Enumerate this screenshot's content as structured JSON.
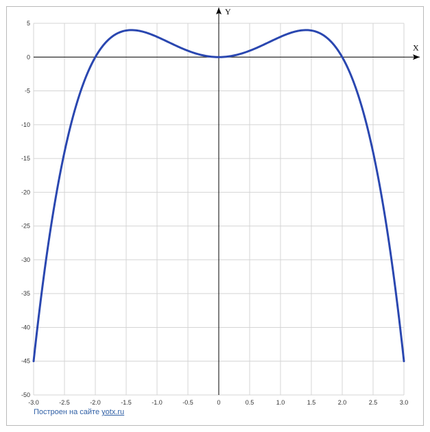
{
  "chart_data": {
    "type": "line",
    "function": "y = 4x^2 - x^4",
    "xlabel": "X",
    "ylabel": "Y",
    "xlim": [
      -3.0,
      3.0
    ],
    "ylim": [
      -50,
      5
    ],
    "x_ticks": [
      "-3.0",
      "-2.5",
      "-2.0",
      "-1.5",
      "-1.0",
      "-0.5",
      "0",
      "0.5",
      "1.0",
      "1.5",
      "2.0",
      "2.5",
      "3.0"
    ],
    "y_ticks": [
      "5",
      "0",
      "-5",
      "-10",
      "-15",
      "-20",
      "-25",
      "-30",
      "-35",
      "-40",
      "-45",
      "-50"
    ],
    "grid": true,
    "series": [
      {
        "color": "#2a47b0",
        "x": [
          -3.0,
          -2.75,
          -2.5,
          -2.25,
          -2.0,
          -1.75,
          -1.5,
          -1.414,
          -1.25,
          -1.0,
          -0.75,
          -0.5,
          -0.25,
          0,
          0.25,
          0.5,
          0.75,
          1.0,
          1.25,
          1.414,
          1.5,
          1.75,
          2.0,
          2.25,
          2.5,
          2.75,
          3.0
        ],
        "y": [
          -45,
          -26.9,
          -14.1,
          -5.4,
          0,
          2.87,
          3.94,
          4.0,
          3.81,
          3.0,
          1.93,
          0.94,
          0.25,
          0,
          0.25,
          0.94,
          1.93,
          3.0,
          3.81,
          4.0,
          3.94,
          2.87,
          0,
          -5.4,
          -14.1,
          -26.9,
          -45
        ]
      }
    ]
  },
  "footer": {
    "text": "Построен на сайте",
    "link": "yotx.ru"
  }
}
